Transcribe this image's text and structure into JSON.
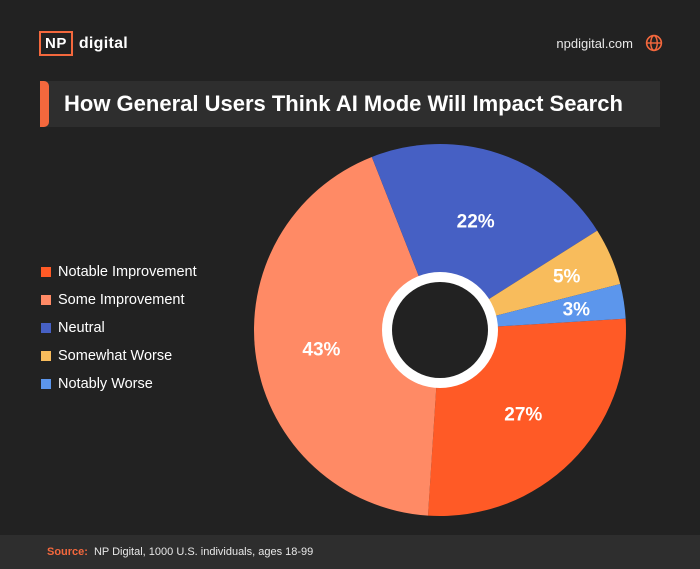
{
  "header": {
    "logo_box": "NP",
    "logo_word": "digital",
    "site": "npdigital.com"
  },
  "title": "How General Users Think AI Mode Will Impact Search",
  "chart_data": {
    "type": "pie",
    "title": "How General Users Think AI Mode Will Impact Search",
    "donut": true,
    "legend_position": "left",
    "slices": [
      {
        "label": "Notable Improvement",
        "value": 27,
        "display": "27%",
        "color": "#ff5a26"
      },
      {
        "label": "Some Improvement",
        "value": 43,
        "display": "43%",
        "color": "#ff8a65"
      },
      {
        "label": "Neutral",
        "value": 22,
        "display": "22%",
        "color": "#4660c4"
      },
      {
        "label": "Somewhat Worse",
        "value": 5,
        "display": "5%",
        "color": "#f8bc5c"
      },
      {
        "label": "Notably Worse",
        "value": 3,
        "display": "3%",
        "color": "#5c96ec"
      }
    ]
  },
  "footer": {
    "source_label": "Source:",
    "source_text": "NP Digital, 1000 U.S. individuals, ages 18-99"
  }
}
